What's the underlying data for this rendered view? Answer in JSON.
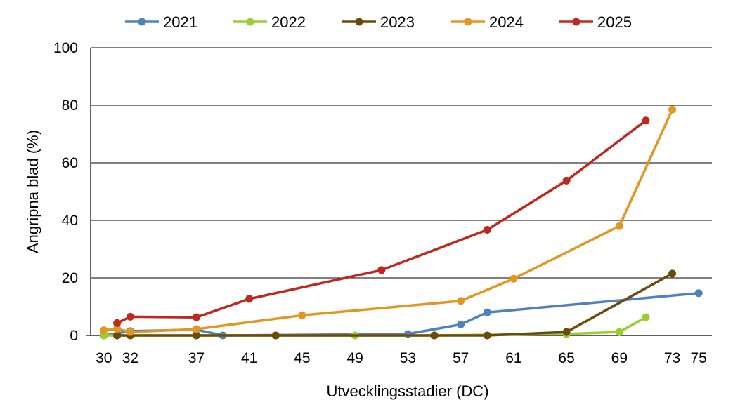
{
  "chart_data": {
    "type": "line",
    "title": "",
    "xlabel": "Utvecklingsstadier (DC)",
    "ylabel": "Angripna blad (%)",
    "ylim": [
      0,
      100
    ],
    "y_ticks": [
      "0",
      "20",
      "40",
      "60",
      "80",
      "100"
    ],
    "x_ticks": [
      "30",
      "32",
      "37",
      "41",
      "45",
      "49",
      "53",
      "57",
      "61",
      "65",
      "69",
      "73",
      "75"
    ],
    "grid": "horizontal",
    "legend": "top",
    "series": [
      {
        "name": "2021",
        "color": "#4f81bd",
        "points": [
          [
            30,
            0
          ],
          [
            32,
            1.5
          ],
          [
            37,
            2
          ],
          [
            39,
            0
          ],
          [
            53,
            0.5
          ],
          [
            57,
            3.8
          ],
          [
            59,
            8
          ],
          [
            75,
            14.7
          ]
        ]
      },
      {
        "name": "2022",
        "color": "#9acd32",
        "points": [
          [
            30,
            0
          ],
          [
            31,
            0
          ],
          [
            49,
            0
          ],
          [
            55,
            0
          ],
          [
            65,
            0.5
          ],
          [
            69,
            1.2
          ],
          [
            71,
            6.3
          ]
        ]
      },
      {
        "name": "2023",
        "color": "#6b4a0a",
        "points": [
          [
            31,
            0
          ],
          [
            32,
            0
          ],
          [
            37,
            0
          ],
          [
            43,
            0
          ],
          [
            55,
            0
          ],
          [
            59,
            0
          ],
          [
            65,
            1.2
          ],
          [
            73,
            21.5
          ]
        ]
      },
      {
        "name": "2024",
        "color": "#e29722",
        "points": [
          [
            30,
            1.8
          ],
          [
            31,
            2.3
          ],
          [
            32,
            1.2
          ],
          [
            37,
            2.2
          ],
          [
            45,
            7
          ],
          [
            57,
            12
          ],
          [
            61,
            19.7
          ],
          [
            69,
            38
          ],
          [
            73,
            78.5
          ]
        ]
      },
      {
        "name": "2025",
        "color": "#c0281f",
        "points": [
          [
            31,
            4.3
          ],
          [
            32,
            6.5
          ],
          [
            37,
            6.3
          ],
          [
            41,
            12.7
          ],
          [
            51,
            22.7
          ],
          [
            59,
            36.7
          ],
          [
            65,
            53.8
          ],
          [
            71,
            74.7
          ]
        ]
      }
    ]
  }
}
